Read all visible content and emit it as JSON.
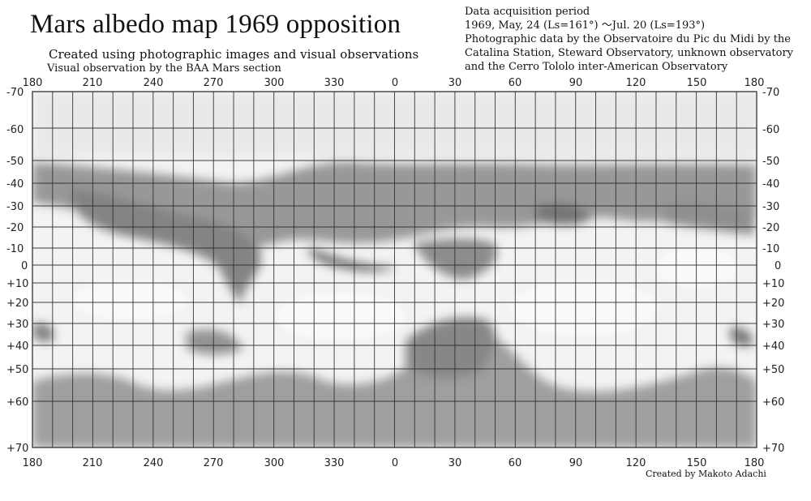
{
  "header": {
    "title": "Mars albedo map 1969 opposition",
    "subtitle": "Created using photographic images and visual observations",
    "subtitle2": "Visual observation by the BAA Mars section"
  },
  "info": {
    "lines": [
      "Data acquisition period",
      "1969, May, 24 (Ls=161°) ～Jul. 20 (Ls=193°)",
      "Photographic data by the Observatoire du Pic du Midi by the",
      "Catalina Station, Steward Observatory, unknown observatory",
      "and the Cerro Tololo inter-American Observatory"
    ]
  },
  "credit": "Created by Makoto Adachi",
  "map": {
    "longitude_labels": [
      "180",
      "210",
      "240",
      "270",
      "300",
      "330",
      "0",
      "30",
      "60",
      "90",
      "120",
      "150",
      "180"
    ],
    "latitude_labels": [
      "-70",
      "-60",
      "-50",
      "-40",
      "-30",
      "-20",
      "-10",
      "0",
      "+10",
      "+20",
      "+30",
      "+40",
      "+50",
      "+60",
      "+70"
    ]
  },
  "colors": {
    "grid": "#2a2a2a",
    "paper": "#f4f4f4",
    "dark_marking": "#5a5a5a"
  }
}
